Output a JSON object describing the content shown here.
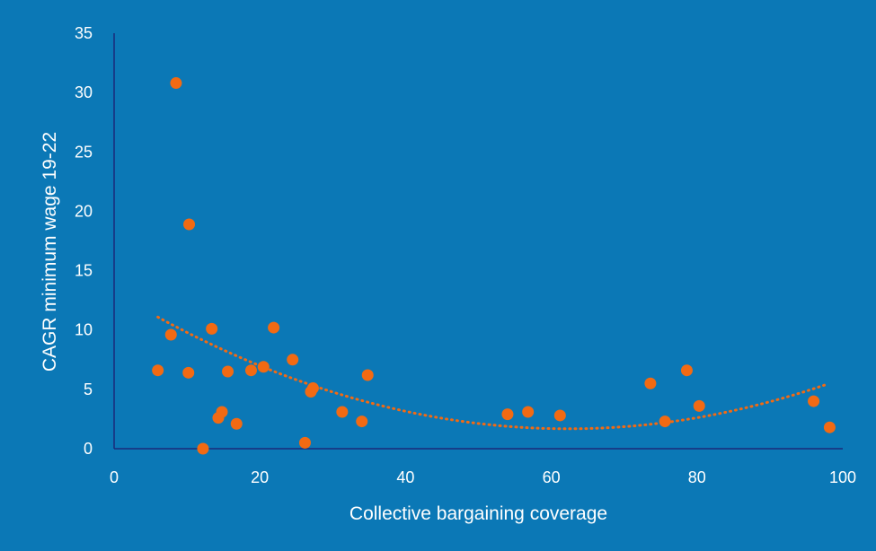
{
  "chart_data": {
    "type": "scatter",
    "title": "",
    "xlabel": "Collective bargaining coverage",
    "ylabel": "CAGR minimum wage 19-22",
    "xlim": [
      0,
      100
    ],
    "ylim": [
      0,
      35
    ],
    "x_ticks": [
      0,
      20,
      40,
      60,
      80,
      100
    ],
    "y_ticks": [
      0,
      5,
      10,
      15,
      20,
      25,
      30,
      35
    ],
    "grid": false,
    "legend": "none",
    "colors": {
      "background": "#0b78b6",
      "axis": "#1a2a7a",
      "points": "#f26a13",
      "trendline": "#f26a13",
      "text": "#ffffff"
    },
    "series": [
      {
        "points": [
          {
            "x": 6,
            "y": 6.6
          },
          {
            "x": 7.8,
            "y": 9.6
          },
          {
            "x": 8.5,
            "y": 30.8
          },
          {
            "x": 10.2,
            "y": 6.4
          },
          {
            "x": 10.3,
            "y": 18.9
          },
          {
            "x": 12.2,
            "y": 0.0
          },
          {
            "x": 13.4,
            "y": 10.1
          },
          {
            "x": 14.3,
            "y": 2.6
          },
          {
            "x": 14.8,
            "y": 3.1
          },
          {
            "x": 15.6,
            "y": 6.5
          },
          {
            "x": 16.8,
            "y": 2.1
          },
          {
            "x": 18.8,
            "y": 6.6
          },
          {
            "x": 20.5,
            "y": 6.9
          },
          {
            "x": 21.9,
            "y": 10.2
          },
          {
            "x": 24.5,
            "y": 7.5
          },
          {
            "x": 26.2,
            "y": 0.5
          },
          {
            "x": 27.0,
            "y": 4.8
          },
          {
            "x": 27.3,
            "y": 5.1
          },
          {
            "x": 31.3,
            "y": 3.1
          },
          {
            "x": 34.0,
            "y": 2.3
          },
          {
            "x": 34.8,
            "y": 6.2
          },
          {
            "x": 54.0,
            "y": 2.9
          },
          {
            "x": 56.8,
            "y": 3.1
          },
          {
            "x": 61.2,
            "y": 2.8
          },
          {
            "x": 73.6,
            "y": 5.5
          },
          {
            "x": 75.6,
            "y": 2.3
          },
          {
            "x": 78.6,
            "y": 6.6
          },
          {
            "x": 80.3,
            "y": 3.6
          },
          {
            "x": 96.0,
            "y": 4.0
          },
          {
            "x": 98.2,
            "y": 1.8
          }
        ]
      }
    ],
    "trendline": {
      "type": "polynomial-2",
      "style": "dotted",
      "coefficients": [
        13.2,
        -0.37,
        0.00297
      ],
      "x_range": [
        6,
        98
      ]
    }
  }
}
